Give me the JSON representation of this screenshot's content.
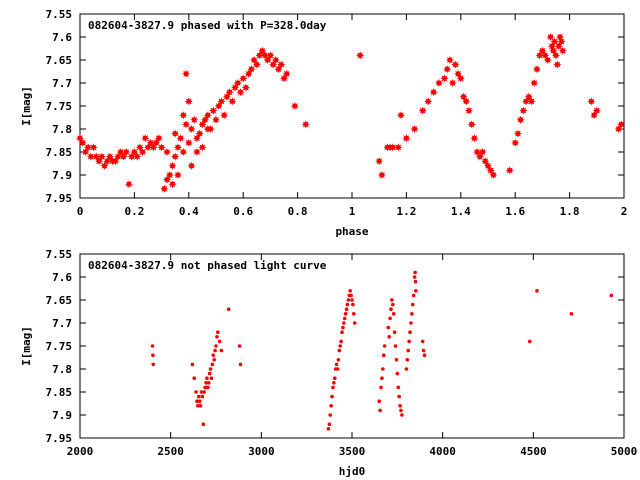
{
  "colors": {
    "points": "#ff0000",
    "axes": "#000000",
    "background": "#ffffff"
  },
  "chart_data": [
    {
      "type": "scatter",
      "title": "082604-3827.9 phased with P=328.0day",
      "xlabel": "phase",
      "ylabel": "I[mag]",
      "xlim": [
        0,
        2
      ],
      "ylim": [
        7.55,
        7.95
      ],
      "y_inverted": true,
      "x_ticks": [
        "0",
        "0.2",
        "0.4",
        "0.6",
        "0.8",
        "1",
        "1.2",
        "1.4",
        "1.6",
        "1.8",
        "2"
      ],
      "y_ticks": [
        "7.55",
        "7.6",
        "7.65",
        "7.7",
        "7.75",
        "7.8",
        "7.85",
        "7.9",
        "7.95"
      ],
      "grid": false,
      "marker": "star",
      "series": [
        {
          "points": [
            [
              0.0,
              7.82
            ],
            [
              0.01,
              7.83
            ],
            [
              0.02,
              7.85
            ],
            [
              0.03,
              7.84
            ],
            [
              0.04,
              7.86
            ],
            [
              0.05,
              7.84
            ],
            [
              0.06,
              7.86
            ],
            [
              0.07,
              7.87
            ],
            [
              0.08,
              7.86
            ],
            [
              0.09,
              7.88
            ],
            [
              0.1,
              7.87
            ],
            [
              0.11,
              7.86
            ],
            [
              0.12,
              7.87
            ],
            [
              0.13,
              7.87
            ],
            [
              0.14,
              7.86
            ],
            [
              0.15,
              7.85
            ],
            [
              0.16,
              7.86
            ],
            [
              0.17,
              7.85
            ],
            [
              0.18,
              7.92
            ],
            [
              0.19,
              7.86
            ],
            [
              0.2,
              7.85
            ],
            [
              0.21,
              7.86
            ],
            [
              0.22,
              7.84
            ],
            [
              0.23,
              7.85
            ],
            [
              0.24,
              7.82
            ],
            [
              0.25,
              7.84
            ],
            [
              0.26,
              7.83
            ],
            [
              0.27,
              7.84
            ],
            [
              0.28,
              7.83
            ],
            [
              0.29,
              7.82
            ],
            [
              0.3,
              7.84
            ],
            [
              0.31,
              7.93
            ],
            [
              0.32,
              7.91
            ],
            [
              0.33,
              7.9
            ],
            [
              0.34,
              7.88
            ],
            [
              0.35,
              7.86
            ],
            [
              0.36,
              7.84
            ],
            [
              0.37,
              7.82
            ],
            [
              0.38,
              7.85
            ],
            [
              0.39,
              7.79
            ],
            [
              0.4,
              7.83
            ],
            [
              0.41,
              7.8
            ],
            [
              0.42,
              7.78
            ],
            [
              0.43,
              7.82
            ],
            [
              0.44,
              7.81
            ],
            [
              0.45,
              7.79
            ],
            [
              0.46,
              7.78
            ],
            [
              0.47,
              7.77
            ],
            [
              0.48,
              7.8
            ],
            [
              0.49,
              7.76
            ],
            [
              0.5,
              7.78
            ],
            [
              0.51,
              7.75
            ],
            [
              0.52,
              7.74
            ],
            [
              0.53,
              7.77
            ],
            [
              0.54,
              7.73
            ],
            [
              0.55,
              7.72
            ],
            [
              0.56,
              7.74
            ],
            [
              0.57,
              7.71
            ],
            [
              0.58,
              7.7
            ],
            [
              0.59,
              7.72
            ],
            [
              0.6,
              7.69
            ],
            [
              0.61,
              7.71
            ],
            [
              0.62,
              7.68
            ],
            [
              0.63,
              7.67
            ],
            [
              0.64,
              7.65
            ],
            [
              0.65,
              7.66
            ],
            [
              0.66,
              7.64
            ],
            [
              0.67,
              7.63
            ],
            [
              0.68,
              7.64
            ],
            [
              0.69,
              7.65
            ],
            [
              0.7,
              7.64
            ],
            [
              0.71,
              7.66
            ],
            [
              0.72,
              7.65
            ],
            [
              0.73,
              7.67
            ],
            [
              0.74,
              7.66
            ],
            [
              0.75,
              7.69
            ],
            [
              0.76,
              7.68
            ],
            [
              0.79,
              7.75
            ],
            [
              0.83,
              7.79
            ],
            [
              0.32,
              7.85
            ],
            [
              0.35,
              7.81
            ],
            [
              0.38,
              7.77
            ],
            [
              0.4,
              7.74
            ],
            [
              0.41,
              7.88
            ],
            [
              0.43,
              7.85
            ],
            [
              0.45,
              7.84
            ],
            [
              0.47,
              7.8
            ],
            [
              0.39,
              7.68
            ],
            [
              0.36,
              7.9
            ],
            [
              0.34,
              7.92
            ],
            [
              1.03,
              7.64
            ],
            [
              1.1,
              7.87
            ],
            [
              1.11,
              7.9
            ],
            [
              1.13,
              7.84
            ],
            [
              1.14,
              7.84
            ],
            [
              1.15,
              7.84
            ],
            [
              1.17,
              7.84
            ],
            [
              1.18,
              7.77
            ],
            [
              1.2,
              7.82
            ],
            [
              1.23,
              7.8
            ],
            [
              1.26,
              7.76
            ],
            [
              1.28,
              7.74
            ],
            [
              1.3,
              7.72
            ],
            [
              1.32,
              7.7
            ],
            [
              1.34,
              7.69
            ],
            [
              1.35,
              7.67
            ],
            [
              1.36,
              7.65
            ],
            [
              1.37,
              7.7
            ],
            [
              1.38,
              7.66
            ],
            [
              1.39,
              7.68
            ],
            [
              1.4,
              7.69
            ],
            [
              1.41,
              7.73
            ],
            [
              1.42,
              7.74
            ],
            [
              1.43,
              7.76
            ],
            [
              1.44,
              7.79
            ],
            [
              1.45,
              7.82
            ],
            [
              1.46,
              7.85
            ],
            [
              1.47,
              7.86
            ],
            [
              1.48,
              7.85
            ],
            [
              1.49,
              7.87
            ],
            [
              1.5,
              7.88
            ],
            [
              1.51,
              7.89
            ],
            [
              1.52,
              7.9
            ],
            [
              1.58,
              7.89
            ],
            [
              1.6,
              7.83
            ],
            [
              1.61,
              7.81
            ],
            [
              1.62,
              7.78
            ],
            [
              1.63,
              7.76
            ],
            [
              1.64,
              7.74
            ],
            [
              1.65,
              7.73
            ],
            [
              1.66,
              7.74
            ],
            [
              1.67,
              7.7
            ],
            [
              1.68,
              7.67
            ],
            [
              1.69,
              7.64
            ],
            [
              1.7,
              7.63
            ],
            [
              1.71,
              7.64
            ],
            [
              1.72,
              7.65
            ],
            [
              1.73,
              7.6
            ],
            [
              1.735,
              7.62
            ],
            [
              1.74,
              7.63
            ],
            [
              1.745,
              7.61
            ],
            [
              1.75,
              7.64
            ],
            [
              1.755,
              7.66
            ],
            [
              1.76,
              7.62
            ],
            [
              1.765,
              7.6
            ],
            [
              1.77,
              7.61
            ],
            [
              1.775,
              7.63
            ],
            [
              1.88,
              7.74
            ],
            [
              1.89,
              7.77
            ],
            [
              1.9,
              7.76
            ],
            [
              1.98,
              7.8
            ],
            [
              1.99,
              7.79
            ]
          ]
        }
      ]
    },
    {
      "type": "scatter",
      "title": "082604-3827.9 not phased light curve",
      "xlabel": "hjd0",
      "ylabel": "I[mag]",
      "xlim": [
        2000,
        5000
      ],
      "ylim": [
        7.55,
        7.95
      ],
      "y_inverted": true,
      "x_ticks": [
        "2000",
        "2500",
        "3000",
        "3500",
        "4000",
        "4500",
        "5000"
      ],
      "y_ticks": [
        "7.55",
        "7.6",
        "7.65",
        "7.7",
        "7.75",
        "7.8",
        "7.85",
        "7.9",
        "7.95"
      ],
      "grid": false,
      "marker": "dot",
      "series": [
        {
          "points": [
            [
              2400,
              7.75
            ],
            [
              2402,
              7.77
            ],
            [
              2404,
              7.79
            ],
            [
              2620,
              7.79
            ],
            [
              2630,
              7.82
            ],
            [
              2640,
              7.85
            ],
            [
              2645,
              7.87
            ],
            [
              2650,
              7.88
            ],
            [
              2655,
              7.86
            ],
            [
              2660,
              7.87
            ],
            [
              2665,
              7.88
            ],
            [
              2670,
              7.85
            ],
            [
              2675,
              7.86
            ],
            [
              2680,
              7.92
            ],
            [
              2685,
              7.85
            ],
            [
              2690,
              7.84
            ],
            [
              2695,
              7.83
            ],
            [
              2700,
              7.82
            ],
            [
              2705,
              7.84
            ],
            [
              2710,
              7.83
            ],
            [
              2715,
              7.81
            ],
            [
              2720,
              7.8
            ],
            [
              2725,
              7.82
            ],
            [
              2730,
              7.79
            ],
            [
              2735,
              7.77
            ],
            [
              2740,
              7.78
            ],
            [
              2745,
              7.76
            ],
            [
              2750,
              7.75
            ],
            [
              2755,
              7.73
            ],
            [
              2760,
              7.72
            ],
            [
              2770,
              7.74
            ],
            [
              2780,
              7.76
            ],
            [
              2820,
              7.67
            ],
            [
              2880,
              7.75
            ],
            [
              2885,
              7.79
            ],
            [
              3370,
              7.93
            ],
            [
              3375,
              7.92
            ],
            [
              3380,
              7.9
            ],
            [
              3385,
              7.88
            ],
            [
              3390,
              7.86
            ],
            [
              3395,
              7.84
            ],
            [
              3400,
              7.83
            ],
            [
              3405,
              7.82
            ],
            [
              3410,
              7.8
            ],
            [
              3415,
              7.79
            ],
            [
              3420,
              7.8
            ],
            [
              3425,
              7.78
            ],
            [
              3430,
              7.76
            ],
            [
              3435,
              7.75
            ],
            [
              3440,
              7.74
            ],
            [
              3445,
              7.72
            ],
            [
              3450,
              7.71
            ],
            [
              3455,
              7.7
            ],
            [
              3460,
              7.69
            ],
            [
              3465,
              7.68
            ],
            [
              3470,
              7.67
            ],
            [
              3475,
              7.66
            ],
            [
              3480,
              7.65
            ],
            [
              3485,
              7.64
            ],
            [
              3490,
              7.63
            ],
            [
              3495,
              7.64
            ],
            [
              3500,
              7.65
            ],
            [
              3505,
              7.66
            ],
            [
              3510,
              7.68
            ],
            [
              3515,
              7.7
            ],
            [
              3650,
              7.87
            ],
            [
              3655,
              7.89
            ],
            [
              3660,
              7.84
            ],
            [
              3665,
              7.82
            ],
            [
              3670,
              7.8
            ],
            [
              3675,
              7.77
            ],
            [
              3680,
              7.75
            ],
            [
              3700,
              7.71
            ],
            [
              3705,
              7.73
            ],
            [
              3710,
              7.69
            ],
            [
              3715,
              7.67
            ],
            [
              3720,
              7.65
            ],
            [
              3725,
              7.66
            ],
            [
              3730,
              7.68
            ],
            [
              3735,
              7.72
            ],
            [
              3740,
              7.75
            ],
            [
              3745,
              7.78
            ],
            [
              3750,
              7.81
            ],
            [
              3755,
              7.84
            ],
            [
              3760,
              7.86
            ],
            [
              3765,
              7.88
            ],
            [
              3770,
              7.89
            ],
            [
              3775,
              7.9
            ],
            [
              3800,
              7.8
            ],
            [
              3805,
              7.78
            ],
            [
              3810,
              7.76
            ],
            [
              3815,
              7.74
            ],
            [
              3820,
              7.72
            ],
            [
              3825,
              7.7
            ],
            [
              3830,
              7.68
            ],
            [
              3835,
              7.66
            ],
            [
              3840,
              7.64
            ],
            [
              3845,
              7.6
            ],
            [
              3848,
              7.59
            ],
            [
              3850,
              7.61
            ],
            [
              3852,
              7.63
            ],
            [
              3890,
              7.74
            ],
            [
              3895,
              7.76
            ],
            [
              3900,
              7.77
            ],
            [
              4480,
              7.74
            ],
            [
              4520,
              7.63
            ],
            [
              4710,
              7.68
            ],
            [
              4930,
              7.64
            ]
          ]
        }
      ]
    }
  ]
}
